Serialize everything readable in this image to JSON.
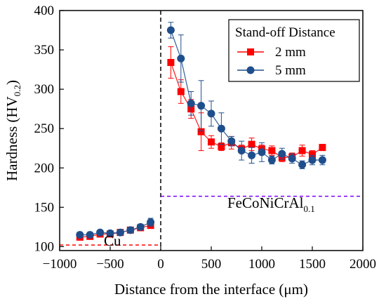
{
  "chart_data": {
    "type": "line",
    "xlabel": "Distance from the interface (μm)",
    "ylabel": {
      "main": "Hardness (HV",
      "sub": "0.2",
      "close": ")"
    },
    "xlim": [
      -1000,
      2000
    ],
    "ylim": [
      95,
      400
    ],
    "xticks": [
      -1000,
      -500,
      0,
      500,
      1000,
      1500,
      2000
    ],
    "xtick_labels": [
      "−1000",
      "−500",
      "0",
      "500",
      "1000",
      "1500",
      "2000"
    ],
    "yticks": [
      100,
      150,
      200,
      250,
      300,
      350,
      400
    ],
    "ytick_labels": [
      "100",
      "150",
      "200",
      "250",
      "300",
      "350",
      "400"
    ],
    "legend": {
      "title": "Stand-off Distance",
      "placement": "top-right"
    },
    "series": [
      {
        "name": "2 mm",
        "color": "#ff0000",
        "marker": "square",
        "x": [
          -800,
          -700,
          -600,
          -500,
          -400,
          -300,
          -200,
          -100,
          100,
          200,
          300,
          400,
          500,
          600,
          700,
          800,
          900,
          1000,
          1100,
          1200,
          1300,
          1400,
          1500,
          1600
        ],
        "y": [
          112,
          113,
          116,
          116,
          118,
          121,
          124,
          127,
          334,
          297,
          275,
          246,
          233,
          227,
          232,
          224,
          230,
          224,
          222,
          213,
          214,
          222,
          217,
          226
        ],
        "err": [
          3,
          3,
          3,
          3,
          3,
          3,
          3,
          4,
          20,
          15,
          12,
          24,
          8,
          5,
          8,
          5,
          8,
          5,
          6,
          5,
          5,
          7,
          5,
          4
        ]
      },
      {
        "name": "5 mm",
        "color": "#1f4e8c",
        "marker": "circle",
        "x": [
          -800,
          -700,
          -600,
          -500,
          -400,
          -300,
          -200,
          -100,
          100,
          200,
          300,
          400,
          500,
          600,
          700,
          800,
          900,
          1000,
          1100,
          1200,
          1300,
          1400,
          1500,
          1600
        ],
        "y": [
          115,
          115,
          118,
          117,
          118,
          121,
          125,
          131,
          375,
          339,
          282,
          279,
          269,
          250,
          234,
          222,
          216,
          220,
          210,
          218,
          212,
          204,
          210,
          210
        ],
        "err": [
          3,
          3,
          3,
          3,
          3,
          3,
          3,
          5,
          10,
          30,
          15,
          32,
          16,
          20,
          6,
          12,
          10,
          12,
          5,
          7,
          6,
          5,
          6,
          6
        ]
      }
    ],
    "reference_lines": [
      {
        "axis": "x",
        "value": 0,
        "color": "#000000",
        "style": "dashed"
      },
      {
        "axis": "y",
        "value": 102,
        "from": -1000,
        "to": 0,
        "color": "#ff0000",
        "style": "dashed"
      },
      {
        "axis": "y",
        "value": 164,
        "from": 0,
        "to": 2000,
        "color": "#7a00ff",
        "style": "dashed"
      }
    ],
    "annotations": [
      {
        "id": "cu",
        "text": "Cu",
        "x": -650,
        "y": 95
      },
      {
        "id": "alloy",
        "text_main": "FeCoNiCrAl",
        "text_sub": "0.1",
        "x": 950,
        "y": 143
      }
    ]
  }
}
